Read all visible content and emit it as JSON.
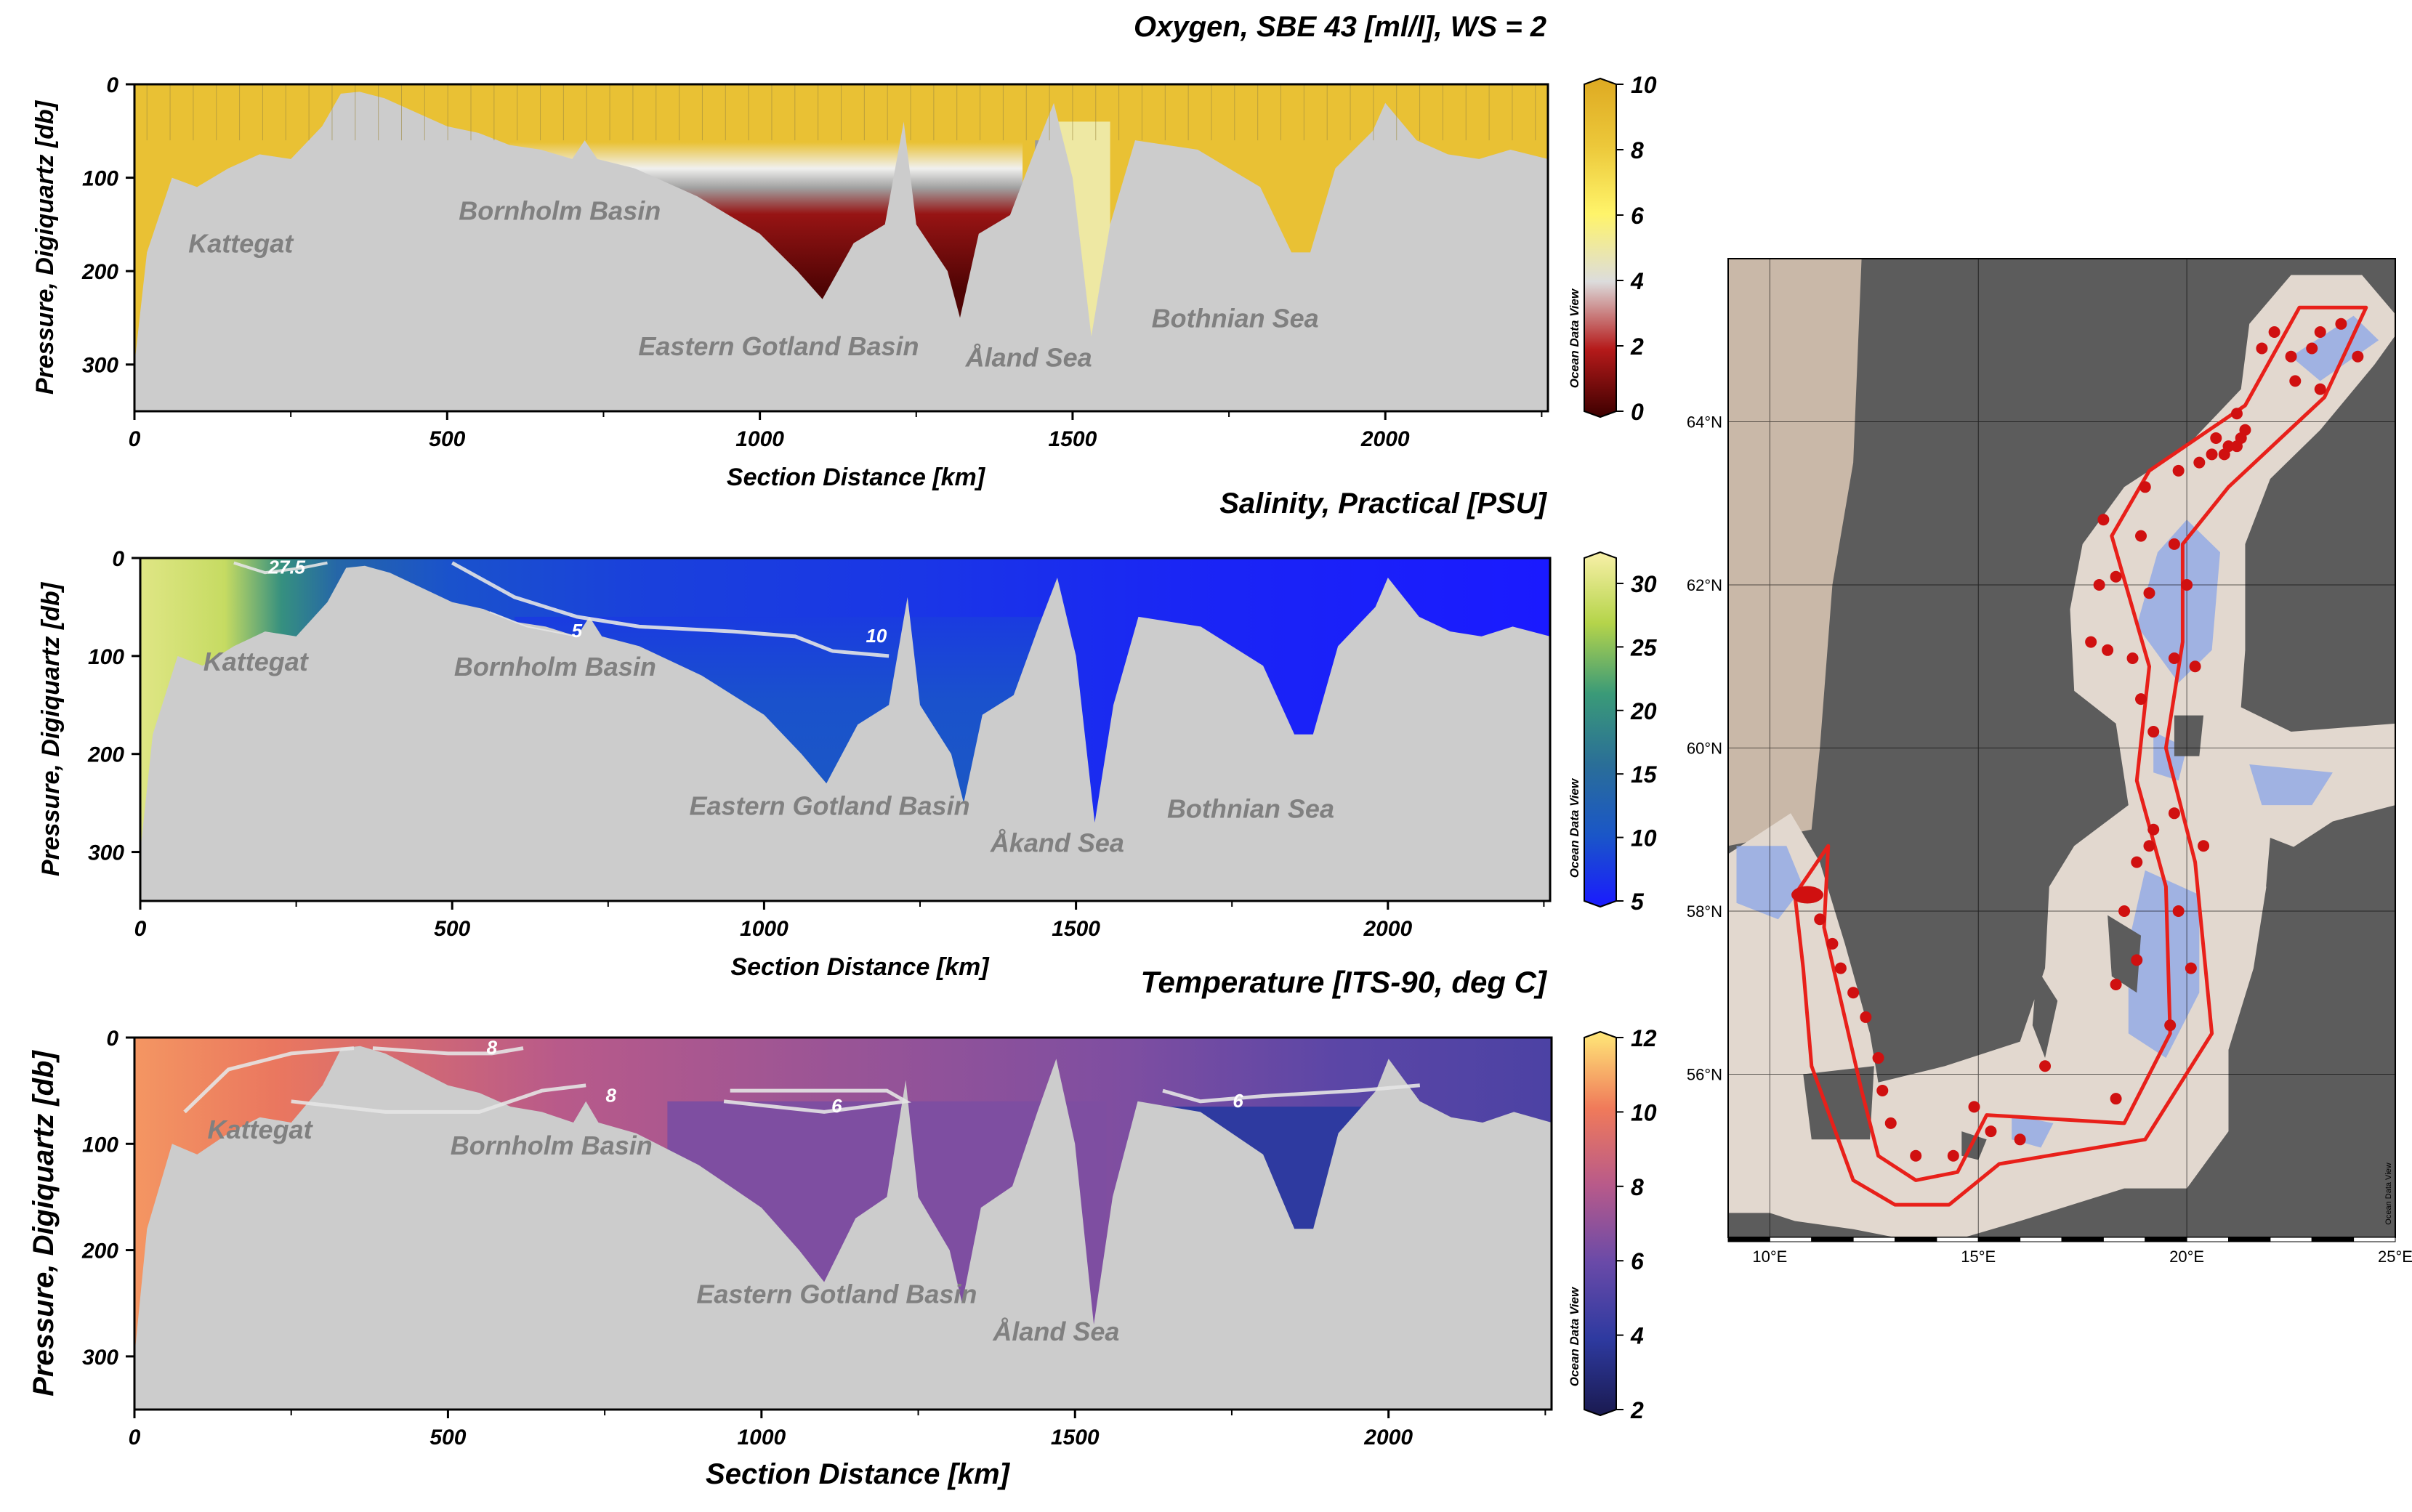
{
  "chart_data": [
    {
      "type": "heatmap",
      "title": "Oxygen, SBE 43 [ml/l], WS = 2",
      "xlabel": "Section Distance [km]",
      "ylabel": "Pressure, Digiquartz [db]",
      "xlim": [
        0,
        2260
      ],
      "ylim": [
        350,
        0
      ],
      "x_ticks": [
        0,
        500,
        1000,
        1500,
        2000
      ],
      "y_ticks": [
        0,
        100,
        200,
        300
      ],
      "colorbar": {
        "ticks": [
          0,
          2,
          4,
          6,
          8,
          10
        ],
        "range": [
          0,
          10
        ],
        "label": "Ocean Data View",
        "colors": [
          "#3d0000",
          "#b51a1a",
          "#dcdcdc",
          "#fff46a",
          "#ecc83a",
          "#deaa22"
        ]
      },
      "regions": [
        "Kattegat",
        "Bornholm Basin",
        "Eastern Gotland Basin",
        "Åland Sea",
        "Bothnian Sea"
      ],
      "contours": [],
      "bottom_profile_db": [
        [
          0,
          300
        ],
        [
          20,
          180
        ],
        [
          60,
          100
        ],
        [
          100,
          110
        ],
        [
          150,
          90
        ],
        [
          200,
          75
        ],
        [
          250,
          80
        ],
        [
          300,
          45
        ],
        [
          330,
          10
        ],
        [
          360,
          8
        ],
        [
          400,
          15
        ],
        [
          450,
          30
        ],
        [
          500,
          45
        ],
        [
          550,
          52
        ],
        [
          600,
          65
        ],
        [
          650,
          70
        ],
        [
          700,
          80
        ],
        [
          720,
          60
        ],
        [
          740,
          80
        ],
        [
          800,
          90
        ],
        [
          900,
          120
        ],
        [
          1000,
          160
        ],
        [
          1060,
          200
        ],
        [
          1100,
          230
        ],
        [
          1150,
          170
        ],
        [
          1200,
          150
        ],
        [
          1230,
          40
        ],
        [
          1250,
          150
        ],
        [
          1300,
          200
        ],
        [
          1320,
          250
        ],
        [
          1350,
          160
        ],
        [
          1400,
          140
        ],
        [
          1440,
          70
        ],
        [
          1470,
          20
        ],
        [
          1500,
          100
        ],
        [
          1530,
          270
        ],
        [
          1560,
          150
        ],
        [
          1600,
          60
        ],
        [
          1700,
          70
        ],
        [
          1800,
          110
        ],
        [
          1850,
          180
        ],
        [
          1880,
          180
        ],
        [
          1920,
          90
        ],
        [
          1980,
          50
        ],
        [
          2000,
          20
        ],
        [
          2050,
          60
        ],
        [
          2100,
          75
        ],
        [
          2150,
          80
        ],
        [
          2200,
          70
        ],
        [
          2260,
          80
        ]
      ],
      "oxygen_fields": {
        "surface_value": 8.5,
        "halocline_zone_km": [
          600,
          1420
        ],
        "anoxic_value": 0.3,
        "yellow_low_band_km": [
          1460,
          1560
        ],
        "yellow_low_value": 5
      }
    },
    {
      "type": "heatmap",
      "title": "Salinity, Practical [PSU]",
      "xlabel": "Section Distance [km]",
      "ylabel": "Pressure, Digiquartz [db]",
      "xlim": [
        0,
        2260
      ],
      "ylim": [
        350,
        0
      ],
      "x_ticks": [
        0,
        500,
        1000,
        1500,
        2000
      ],
      "y_ticks": [
        0,
        100,
        200,
        300
      ],
      "colorbar": {
        "ticks": [
          5,
          10,
          15,
          20,
          25,
          30
        ],
        "range": [
          5,
          32
        ],
        "label": "Ocean Data View",
        "colors": [
          "#1a1aff",
          "#1a56c8",
          "#2a6e98",
          "#3a9a78",
          "#b5d44a",
          "#f8f0a8"
        ]
      },
      "regions": [
        "Kattegat",
        "Bornholm Basin",
        "Eastern Gotland Basin",
        "Åkand Sea",
        "Bothnian Sea"
      ],
      "contours": [
        {
          "label": "27.5",
          "value": 27.5
        },
        {
          "label": "5",
          "value": 5
        },
        {
          "label": "10",
          "value": 10
        }
      ],
      "salinity_fields": {
        "kattegat_value": 30,
        "baltic_surface_value": 7,
        "deep_value": 11,
        "bothnian_value": 5
      }
    },
    {
      "type": "heatmap",
      "title": "Temperature [ITS-90, deg C]",
      "xlabel": "Section Distance [km]",
      "ylabel": "Pressure, Digiquartz [db]",
      "xlim": [
        0,
        2260
      ],
      "ylim": [
        350,
        0
      ],
      "x_ticks": [
        0,
        500,
        1000,
        1500,
        2000
      ],
      "y_ticks": [
        0,
        100,
        200,
        300
      ],
      "colorbar": {
        "ticks": [
          2,
          4,
          6,
          8,
          10,
          12
        ],
        "range": [
          2,
          12
        ],
        "label": "Ocean Data View",
        "colors": [
          "#1a1a50",
          "#2e3aa0",
          "#6a4aa8",
          "#b85a8a",
          "#f07a5a",
          "#ffe878"
        ]
      },
      "regions": [
        "Kattegat",
        "Bornholm Basin",
        "Eastern Gotland Basin",
        "Åland Sea"
      ],
      "contours": [
        {
          "label": "8",
          "value": 8
        },
        {
          "label": "8",
          "value": 8
        },
        {
          "label": "6",
          "value": 6
        },
        {
          "label": "6",
          "value": 6
        }
      ],
      "temperature_fields": {
        "kattegat_value": 10.5,
        "south_value": 8,
        "deep_value": 6.5,
        "bothnian_cold_value": 4
      }
    },
    {
      "type": "map",
      "title": "",
      "lon_ticks": [
        "10°E",
        "15°E",
        "20°E",
        "25°E"
      ],
      "lat_ticks": [
        "64°N",
        "62°N",
        "60°N",
        "58°N",
        "56°N"
      ],
      "lon_range": [
        9,
        25
      ],
      "lat_range": [
        54,
        66
      ],
      "credit": "Ocean Data View",
      "route_color": "#e8201a",
      "station_color": "#d01010",
      "stations": [
        [
          11.2,
          57.9
        ],
        [
          11.5,
          57.6
        ],
        [
          11.7,
          57.3
        ],
        [
          12.0,
          57.0
        ],
        [
          12.3,
          56.7
        ],
        [
          12.6,
          56.2
        ],
        [
          12.7,
          55.8
        ],
        [
          12.9,
          55.4
        ],
        [
          13.5,
          55.0
        ],
        [
          14.4,
          55.0
        ],
        [
          14.9,
          55.6
        ],
        [
          15.3,
          55.3
        ],
        [
          16.0,
          55.2
        ],
        [
          16.6,
          56.1
        ],
        [
          18.3,
          55.7
        ],
        [
          19.6,
          56.6
        ],
        [
          20.1,
          57.3
        ],
        [
          18.3,
          57.1
        ],
        [
          18.8,
          57.4
        ],
        [
          18.5,
          58.0
        ],
        [
          19.8,
          58.0
        ],
        [
          18.8,
          58.6
        ],
        [
          20.4,
          58.8
        ],
        [
          19.1,
          58.8
        ],
        [
          19.2,
          59.0
        ],
        [
          19.7,
          59.2
        ],
        [
          19.2,
          60.2
        ],
        [
          18.9,
          60.6
        ],
        [
          20.2,
          61.0
        ],
        [
          19.7,
          61.1
        ],
        [
          18.7,
          61.1
        ],
        [
          18.1,
          61.2
        ],
        [
          17.7,
          61.3
        ],
        [
          19.1,
          61.9
        ],
        [
          17.9,
          62.0
        ],
        [
          18.3,
          62.1
        ],
        [
          20.0,
          62.0
        ],
        [
          19.7,
          62.5
        ],
        [
          18.9,
          62.6
        ],
        [
          18.0,
          62.8
        ],
        [
          19.0,
          63.2
        ],
        [
          19.8,
          63.4
        ],
        [
          20.3,
          63.5
        ],
        [
          20.6,
          63.6
        ],
        [
          20.9,
          63.6
        ],
        [
          21.2,
          63.7
        ],
        [
          20.7,
          63.8
        ],
        [
          21.4,
          63.9
        ],
        [
          21.2,
          64.1
        ],
        [
          21.0,
          63.7
        ],
        [
          21.3,
          63.8
        ],
        [
          22.6,
          64.5
        ],
        [
          23.2,
          64.4
        ],
        [
          22.5,
          64.8
        ],
        [
          23.0,
          64.9
        ],
        [
          24.1,
          64.8
        ],
        [
          23.2,
          65.1
        ],
        [
          22.1,
          65.1
        ],
        [
          21.8,
          64.9
        ],
        [
          23.7,
          65.2
        ]
      ]
    }
  ]
}
